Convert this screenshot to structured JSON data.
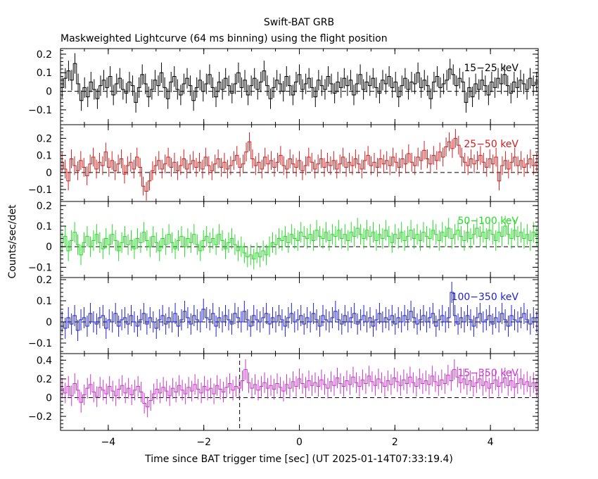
{
  "chart_data": {
    "type": "line",
    "title": "Swift-BAT GRB",
    "subtitle": "Maskweighted Lightcurve (64 ms binning) using the flight position",
    "xlabel": "Time since BAT trigger time [sec] (UT 2025-01-14T07:33:19.4)",
    "ylabel": "Counts/sec/det",
    "xlim": [
      -5.0,
      5.0
    ],
    "x_ticks": [
      -4,
      -2,
      0,
      2,
      4
    ],
    "x_tick_labels": [
      "−4",
      "−2",
      "0",
      "2",
      "4"
    ],
    "bin_width_s": 0.064,
    "marker_line_x": -1.25,
    "step_style": "histogram with error bars",
    "baseline_style": "dashed line at y = 0",
    "panels": [
      {
        "label": "15−25 keV",
        "color": "#000000",
        "ylim": [
          -0.18,
          0.23
        ],
        "y_ticks": [
          -0.1,
          0,
          0.1,
          0.2
        ],
        "y_tick_labels": [
          "−0.1",
          "0",
          "0.1",
          "0.2"
        ],
        "error": 0.055,
        "values": [
          0.02,
          0.07,
          0.11,
          0.06,
          0.15,
          0.04,
          -0.05,
          0.02,
          -0.03,
          0.05,
          0.01,
          -0.04,
          0.03,
          0.06,
          0.02,
          0.08,
          -0.02,
          0.04,
          0.07,
          0.01,
          -0.01,
          0.05,
          0.03,
          -0.06,
          0.02,
          0.09,
          0.04,
          -0.03,
          0.01,
          0.06,
          0.03,
          0.1,
          0.02,
          -0.04,
          0.05,
          0.08,
          0.01,
          -0.02,
          0.04,
          0.07,
          0.03,
          -0.05,
          0.02,
          0.06,
          0.0,
          0.04,
          0.09,
          0.02,
          -0.03,
          0.05,
          0.01,
          0.07,
          0.03,
          -0.01,
          0.04,
          0.1,
          0.02,
          0.06,
          -0.02,
          0.03,
          0.07,
          0.01,
          0.05,
          0.11,
          0.03,
          -0.04,
          0.02,
          0.06,
          0.04,
          0.0,
          0.08,
          0.03,
          -0.02,
          0.05,
          0.09,
          0.01,
          0.04,
          0.07,
          0.02,
          -0.03,
          0.06,
          0.03,
          0.01,
          0.08,
          0.04,
          -0.01,
          0.05,
          0.02,
          0.07,
          0.03,
          0.06,
          -0.02,
          0.04,
          0.09,
          0.01,
          0.05,
          0.03,
          0.07,
          0.02,
          -0.01,
          0.06,
          0.04,
          0.08,
          0.02,
          0.05,
          -0.03,
          0.03,
          0.07,
          0.01,
          0.05,
          0.04,
          0.1,
          0.02,
          0.06,
          0.03,
          -0.04,
          0.05,
          0.08,
          0.02,
          0.04,
          0.06,
          0.12,
          0.09,
          0.03,
          0.07,
          0.05,
          -0.06,
          0.02,
          -0.03,
          0.04,
          0.01,
          0.06,
          0.03,
          -0.02,
          0.05,
          0.02,
          0.07,
          0.04,
          0.09,
          0.03,
          -0.01,
          0.05,
          0.02,
          0.06,
          0.04,
          0.01,
          0.07,
          0.03,
          0.05
        ]
      },
      {
        "label": "25−50 keV",
        "color": "#cc1f1f",
        "ylim": [
          -0.17,
          0.28
        ],
        "y_ticks": [
          -0.1,
          0,
          0.1,
          0.2
        ],
        "y_tick_labels": [
          "−0.1",
          "0",
          "0.1",
          "0.2"
        ],
        "error": 0.055,
        "values": [
          0.06,
          0.02,
          -0.05,
          0.08,
          0.04,
          0.01,
          0.07,
          0.03,
          -0.02,
          0.05,
          0.09,
          0.02,
          0.06,
          0.04,
          0.12,
          0.03,
          0.07,
          0.01,
          0.05,
          0.08,
          -0.01,
          0.04,
          0.06,
          0.02,
          0.09,
          0.03,
          -0.08,
          -0.11,
          -0.05,
          0.01,
          0.04,
          0.07,
          0.02,
          0.05,
          0.09,
          0.03,
          0.06,
          0.01,
          0.04,
          0.08,
          0.02,
          0.05,
          0.07,
          0.03,
          0.06,
          0.02,
          0.09,
          0.04,
          0.01,
          0.05,
          0.08,
          0.03,
          0.06,
          0.02,
          0.04,
          0.07,
          0.1,
          0.03,
          0.05,
          0.12,
          0.18,
          0.08,
          0.04,
          0.06,
          0.02,
          0.09,
          0.05,
          0.07,
          0.03,
          0.06,
          0.1,
          0.04,
          0.02,
          0.08,
          0.05,
          0.03,
          0.07,
          0.01,
          0.04,
          0.09,
          0.06,
          0.02,
          0.05,
          0.08,
          0.03,
          0.06,
          0.04,
          0.07,
          0.02,
          0.05,
          0.09,
          0.03,
          0.06,
          0.04,
          0.08,
          0.05,
          0.02,
          0.07,
          0.1,
          0.04,
          0.06,
          0.03,
          0.08,
          0.05,
          0.07,
          0.04,
          0.09,
          0.06,
          0.03,
          0.08,
          0.05,
          0.11,
          0.06,
          0.04,
          0.09,
          0.07,
          0.13,
          0.08,
          0.05,
          0.1,
          0.07,
          0.12,
          0.09,
          0.15,
          0.18,
          0.14,
          0.2,
          0.16,
          0.09,
          0.06,
          0.04,
          0.08,
          0.05,
          0.07,
          0.1,
          0.06,
          0.03,
          0.08,
          0.05,
          0.09,
          -0.05,
          0.04,
          0.07,
          0.02,
          0.06,
          0.09,
          0.04,
          0.07,
          0.03,
          0.05,
          0.08,
          0.04,
          0.06
        ]
      },
      {
        "label": "50−100 keV",
        "color": "#22dd22",
        "ylim": [
          -0.15,
          0.22
        ],
        "y_ticks": [
          -0.1,
          0,
          0.1,
          0.2
        ],
        "y_tick_labels": [
          "−0.1",
          "0",
          "0.1",
          "0.2"
        ],
        "error": 0.05,
        "values": [
          0.02,
          0.05,
          -0.02,
          0.03,
          0.07,
          0.01,
          -0.04,
          0.02,
          0.05,
          0.0,
          0.03,
          0.06,
          0.02,
          -0.01,
          0.04,
          0.01,
          0.06,
          0.03,
          -0.02,
          0.02,
          0.05,
          0.01,
          0.03,
          -0.01,
          0.04,
          0.02,
          0.07,
          0.03,
          0.0,
          0.05,
          0.02,
          -0.02,
          0.04,
          0.01,
          0.06,
          0.02,
          -0.01,
          0.03,
          0.05,
          0.0,
          0.04,
          0.02,
          0.06,
          0.01,
          -0.02,
          0.03,
          0.05,
          0.02,
          0.04,
          0.01,
          0.06,
          0.03,
          -0.01,
          0.02,
          0.04,
          0.01,
          -0.02,
          0.0,
          -0.03,
          -0.05,
          -0.04,
          -0.06,
          -0.03,
          -0.05,
          -0.02,
          -0.04,
          0.0,
          0.02,
          0.01,
          0.04,
          0.03,
          0.05,
          0.02,
          0.06,
          0.04,
          0.03,
          0.07,
          0.05,
          0.04,
          0.06,
          0.03,
          0.08,
          0.05,
          0.04,
          0.07,
          0.03,
          0.06,
          0.05,
          0.08,
          0.04,
          0.06,
          0.03,
          0.07,
          0.05,
          0.09,
          0.06,
          0.04,
          0.08,
          0.05,
          0.07,
          0.03,
          0.06,
          0.04,
          0.08,
          0.05,
          0.02,
          0.06,
          0.04,
          0.07,
          0.03,
          0.05,
          0.08,
          0.04,
          0.06,
          0.03,
          0.07,
          0.05,
          0.04,
          0.08,
          0.06,
          0.03,
          0.07,
          0.05,
          0.09,
          0.04,
          0.06,
          0.08,
          0.05,
          0.03,
          0.07,
          0.04,
          0.06,
          0.09,
          0.05,
          0.07,
          0.04,
          0.08,
          0.06,
          0.03,
          0.07,
          0.05,
          0.1,
          0.06,
          0.04,
          0.08,
          0.05,
          0.07,
          0.04,
          0.06,
          0.03,
          0.07,
          0.05
        ]
      },
      {
        "label": "100−350 keV",
        "color": "#1f1fcc",
        "ylim": [
          -0.15,
          0.21
        ],
        "y_ticks": [
          -0.1,
          0,
          0.1,
          0.2
        ],
        "y_tick_labels": [
          "−0.1",
          "0",
          "0.1",
          "0.2"
        ],
        "error": 0.05,
        "values": [
          0.0,
          -0.03,
          0.02,
          -0.01,
          0.03,
          -0.04,
          0.01,
          0.02,
          -0.02,
          0.04,
          0.0,
          -0.01,
          0.02,
          0.03,
          -0.03,
          0.01,
          0.0,
          0.04,
          -0.02,
          0.01,
          0.02,
          -0.01,
          0.03,
          0.0,
          -0.02,
          0.01,
          0.04,
          -0.01,
          0.02,
          0.0,
          -0.03,
          0.01,
          0.03,
          -0.01,
          0.02,
          0.0,
          0.04,
          -0.02,
          0.01,
          0.05,
          0.02,
          -0.01,
          0.03,
          0.01,
          0.0,
          0.06,
          0.02,
          0.01,
          0.04,
          -0.02,
          0.02,
          0.0,
          0.03,
          0.01,
          -0.01,
          0.04,
          0.02,
          0.0,
          0.05,
          0.01,
          -0.02,
          0.03,
          0.01,
          0.0,
          0.02,
          0.04,
          -0.01,
          0.02,
          0.0,
          0.03,
          0.01,
          -0.02,
          0.02,
          0.04,
          0.0,
          0.01,
          0.03,
          -0.01,
          0.02,
          0.0,
          0.04,
          0.01,
          -0.02,
          0.03,
          0.01,
          0.0,
          0.02,
          0.05,
          0.01,
          -0.01,
          0.03,
          0.0,
          0.02,
          0.04,
          -0.01,
          0.01,
          0.03,
          0.0,
          0.02,
          -0.02,
          0.01,
          0.04,
          0.0,
          0.02,
          0.01,
          0.03,
          -0.01,
          0.02,
          0.0,
          0.03,
          0.01,
          0.05,
          0.02,
          -0.01,
          0.01,
          0.03,
          0.0,
          0.02,
          0.04,
          -0.02,
          0.01,
          0.03,
          0.0,
          0.02,
          0.14,
          0.03,
          -0.01,
          0.02,
          0.0,
          0.03,
          0.01,
          -0.02,
          0.02,
          0.04,
          0.0,
          0.01,
          0.03,
          -0.01,
          0.02,
          0.0,
          0.04,
          0.01,
          -0.02,
          0.03,
          0.01,
          0.0,
          0.02,
          0.04,
          0.01,
          -0.01,
          0.02,
          0.0
        ]
      },
      {
        "label": "15−350 keV",
        "color": "#cc33cc",
        "ylim": [
          -0.35,
          0.47
        ],
        "y_ticks": [
          -0.2,
          0,
          0.2,
          0.4
        ],
        "y_tick_labels": [
          "−0.2",
          "0",
          "0.2",
          "0.4"
        ],
        "error": 0.11,
        "values": [
          0.1,
          0.05,
          0.12,
          0.02,
          0.15,
          0.08,
          -0.05,
          0.03,
          0.1,
          0.14,
          0.06,
          0.01,
          0.11,
          0.08,
          0.04,
          0.12,
          0.07,
          0.02,
          0.09,
          0.13,
          0.05,
          0.1,
          0.03,
          0.08,
          0.12,
          0.06,
          -0.06,
          -0.1,
          -0.03,
          0.04,
          0.09,
          0.05,
          0.11,
          0.07,
          0.02,
          0.1,
          0.06,
          0.13,
          0.08,
          0.04,
          0.11,
          0.07,
          0.14,
          0.09,
          0.05,
          0.12,
          0.08,
          0.1,
          0.04,
          0.13,
          0.09,
          0.06,
          0.11,
          0.15,
          0.08,
          0.12,
          0.1,
          0.18,
          0.3,
          0.16,
          0.1,
          0.14,
          0.08,
          0.12,
          0.16,
          0.1,
          0.13,
          0.09,
          0.15,
          0.11,
          0.07,
          0.14,
          0.1,
          0.17,
          0.12,
          0.2,
          0.15,
          0.11,
          0.18,
          0.13,
          0.16,
          0.12,
          0.19,
          0.14,
          0.1,
          0.17,
          0.13,
          0.21,
          0.15,
          0.12,
          0.18,
          0.14,
          0.22,
          0.16,
          0.12,
          0.19,
          0.15,
          0.23,
          0.17,
          0.13,
          0.2,
          0.16,
          0.12,
          0.18,
          0.14,
          0.21,
          0.17,
          0.13,
          0.19,
          0.15,
          0.22,
          0.16,
          0.12,
          0.2,
          0.15,
          0.18,
          0.14,
          0.23,
          0.17,
          0.13,
          0.19,
          0.15,
          0.24,
          0.18,
          0.3,
          0.22,
          0.16,
          0.2,
          0.14,
          0.18,
          0.12,
          0.16,
          0.2,
          0.13,
          0.17,
          0.1,
          0.15,
          0.19,
          0.12,
          0.16,
          0.21,
          0.13,
          0.18,
          0.11,
          0.15,
          0.2,
          0.14,
          0.17,
          0.12,
          0.16,
          0.1
        ]
      }
    ]
  }
}
